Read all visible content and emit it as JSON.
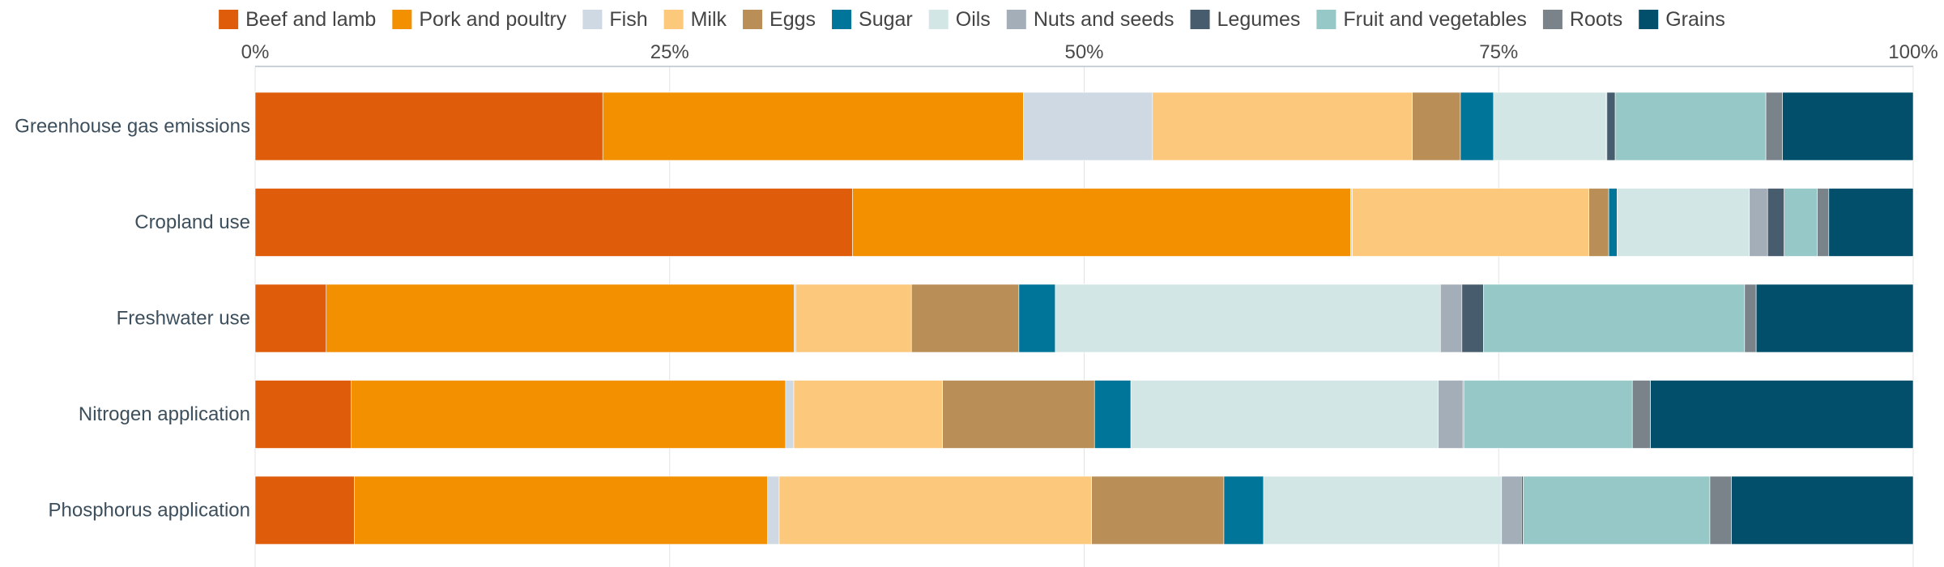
{
  "chart_data": {
    "type": "bar",
    "orientation": "horizontal",
    "stacked": true,
    "normalized": true,
    "title": "",
    "xlabel": "",
    "ylabel": "",
    "xlim": [
      0,
      100
    ],
    "x_ticks": [
      "0%",
      "25%",
      "50%",
      "75%",
      "100%"
    ],
    "legend_position": "top",
    "grid": true,
    "categories": [
      "Greenhouse gas emissions",
      "Cropland use",
      "Freshwater use",
      "Nitrogen application",
      "Phosphorus application"
    ],
    "series": [
      {
        "name": "Beef and lamb",
        "color": "#df5c0a",
        "values": [
          21.0,
          36.1,
          4.3,
          5.8,
          6.0
        ]
      },
      {
        "name": "Pork and poultry",
        "color": "#f39000",
        "values": [
          25.4,
          30.1,
          28.3,
          26.3,
          25.0
        ]
      },
      {
        "name": "Fish",
        "color": "#cfd9e3",
        "values": [
          7.8,
          0.1,
          0.1,
          0.5,
          0.7
        ]
      },
      {
        "name": "Milk",
        "color": "#fbc87c",
        "values": [
          15.7,
          14.3,
          7.0,
          9.0,
          18.9
        ]
      },
      {
        "name": "Eggs",
        "color": "#b98f57",
        "values": [
          2.9,
          1.2,
          6.5,
          9.2,
          8.0
        ]
      },
      {
        "name": "Sugar",
        "color": "#00759a",
        "values": [
          2.0,
          0.5,
          2.2,
          2.2,
          2.4
        ]
      },
      {
        "name": "Oils",
        "color": "#d2e7e5",
        "values": [
          6.8,
          8.0,
          23.3,
          18.6,
          14.4
        ]
      },
      {
        "name": "Nuts and seeds",
        "color": "#a3aeb9",
        "values": [
          0.05,
          1.1,
          1.3,
          1.5,
          1.2
        ]
      },
      {
        "name": "Legumes",
        "color": "#475d6e",
        "values": [
          0.5,
          1.0,
          1.3,
          0.05,
          0.1
        ]
      },
      {
        "name": "Fruit and vegetables",
        "color": "#95c8c7",
        "values": [
          9.1,
          2.0,
          15.8,
          10.2,
          11.3
        ]
      },
      {
        "name": "Roots",
        "color": "#7b838a",
        "values": [
          1.0,
          0.7,
          0.7,
          1.1,
          1.3
        ]
      },
      {
        "name": "Grains",
        "color": "#014f6b",
        "values": [
          7.9,
          5.1,
          9.5,
          15.9,
          11.0
        ]
      }
    ]
  }
}
